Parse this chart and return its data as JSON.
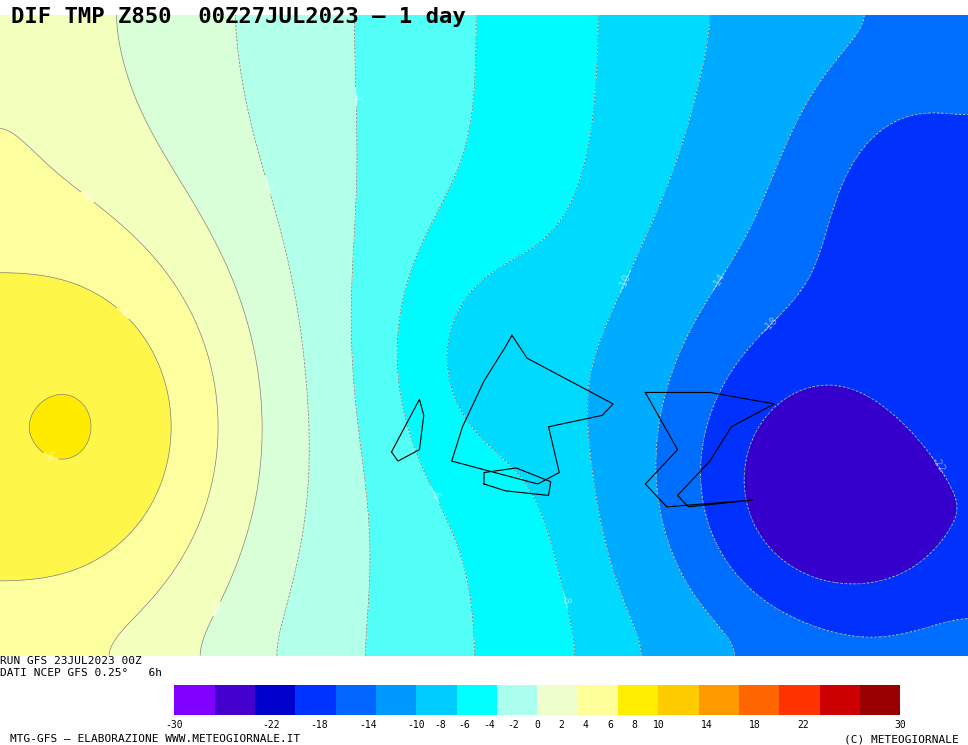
{
  "title": "DIF TMP Z850  00Z27JUL2023 – 1 day",
  "run_label": "RUN GFS 23JUL2023 00Z",
  "data_label": "DATI NCEP GFS 0.25°   6h",
  "bottom_left": "MTG-GFS – ELABORAZIONE WWW.METEOGIORNALE.IT",
  "bottom_right": "(C) METEOGIORNALE",
  "colorbar_levels": [
    -30,
    -22,
    -18,
    -14,
    -10,
    -8,
    -6,
    -4,
    -2,
    0,
    2,
    4,
    6,
    8,
    10,
    14,
    18,
    22,
    30
  ],
  "colorbar_ticks": [
    -30,
    -22,
    -18,
    -14,
    -10,
    -8,
    -6,
    -4,
    -2,
    0,
    2,
    4,
    6,
    8,
    10,
    14,
    18,
    22,
    30
  ],
  "colorbar_colors": [
    "#7f00ff",
    "#4400cc",
    "#0000cc",
    "#0033ff",
    "#0066ff",
    "#0099ff",
    "#00ccff",
    "#00ffff",
    "#aaffee",
    "#eeffcc",
    "#ffff99",
    "#ffee00",
    "#ffcc00",
    "#ff9900",
    "#ff6600",
    "#ff3300",
    "#cc0000",
    "#990000",
    "#660066"
  ],
  "title_bg": "#ffffff",
  "title_fontsize": 16,
  "map_bg": "#f0e8c8",
  "fig_width": 9.68,
  "fig_height": 7.45
}
